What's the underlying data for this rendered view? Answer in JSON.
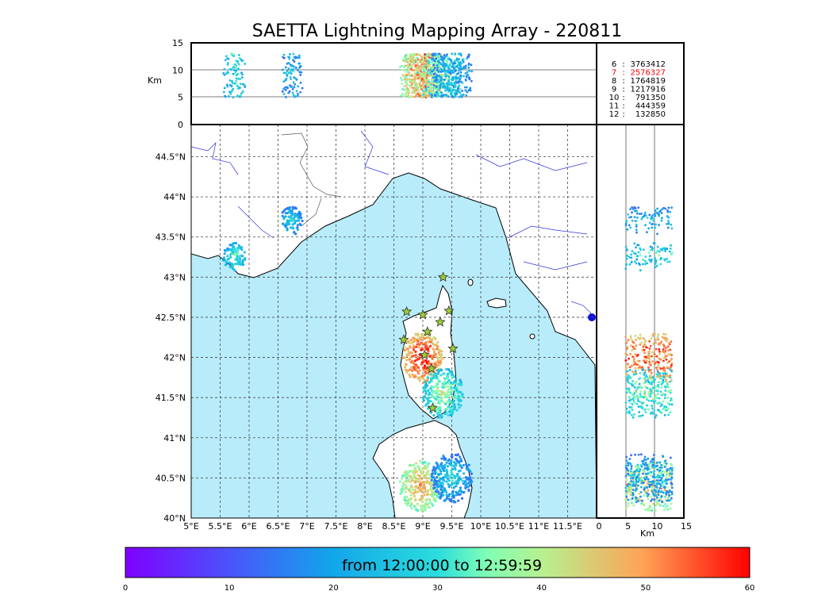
{
  "chart_data": {
    "type": "scatter",
    "title": "SAETTA Lightning Mapping Array - 220811",
    "map": {
      "lon_range": [
        5,
        12
      ],
      "lat_range": [
        40,
        44.9
      ],
      "x_ticks": [
        "5°E",
        "5.5°E",
        "6°E",
        "6.5°E",
        "7°E",
        "7.5°E",
        "8°E",
        "8.5°E",
        "9°E",
        "9.5°E",
        "10°E",
        "10.5°E",
        "11°E",
        "11.5°E"
      ],
      "y_ticks": [
        "40°N",
        "40.5°N",
        "41°N",
        "41.5°N",
        "42°N",
        "42.5°N",
        "43°N",
        "43.5°N",
        "44°N",
        "44.5°N"
      ],
      "grid": true,
      "stations": [
        {
          "lon": 9.35,
          "lat": 43.0
        },
        {
          "lon": 8.72,
          "lat": 42.57
        },
        {
          "lon": 9.0,
          "lat": 42.53
        },
        {
          "lon": 9.45,
          "lat": 42.58
        },
        {
          "lon": 9.3,
          "lat": 42.44
        },
        {
          "lon": 9.08,
          "lat": 42.32
        },
        {
          "lon": 8.67,
          "lat": 42.22
        },
        {
          "lon": 9.52,
          "lat": 42.11
        },
        {
          "lon": 9.03,
          "lat": 42.03
        },
        {
          "lon": 9.15,
          "lat": 41.86
        },
        {
          "lon": 9.17,
          "lat": 41.37
        }
      ],
      "storm_clusters": [
        {
          "lon": 6.73,
          "lat": 43.7,
          "time_min": 25
        },
        {
          "lon": 5.75,
          "lat": 43.25,
          "time_min": 30
        },
        {
          "lon": 9.0,
          "lat": 42.0,
          "time_min": 55
        },
        {
          "lon": 9.35,
          "lat": 41.55,
          "time_min": 35
        },
        {
          "lon": 8.95,
          "lat": 40.4,
          "time_min": 45
        },
        {
          "lon": 9.5,
          "lat": 40.5,
          "time_min": 25
        }
      ]
    },
    "top_panel": {
      "ylabel": "Km",
      "ylim": [
        0,
        15
      ],
      "y_ticks": [
        "0",
        "5",
        "10",
        "15"
      ]
    },
    "right_panel": {
      "xlabel": "Km",
      "xlim": [
        0,
        15
      ],
      "x_ticks": [
        "0",
        "5",
        "10",
        "15"
      ]
    },
    "station_counts": [
      {
        "id": "6",
        "count": "3763412",
        "highlight": false
      },
      {
        "id": "7",
        "count": "2576327",
        "highlight": true
      },
      {
        "id": "8",
        "count": "1764819",
        "highlight": false
      },
      {
        "id": "9",
        "count": "1217916",
        "highlight": false
      },
      {
        "id": "10",
        "count": "791350",
        "highlight": false
      },
      {
        "id": "11",
        "count": "444359",
        "highlight": false
      },
      {
        "id": "12",
        "count": "132850",
        "highlight": false
      }
    ],
    "colorbar": {
      "label": "from 12:00:00 to 12:59:59",
      "range": [
        0,
        60
      ],
      "ticks": [
        "0",
        "10",
        "20",
        "30",
        "40",
        "50",
        "60"
      ],
      "colormap": "rainbow"
    },
    "colors": {
      "sea": "#b8ecfa",
      "highlight": "#ff0000",
      "station_fill": "#9acd32"
    }
  }
}
